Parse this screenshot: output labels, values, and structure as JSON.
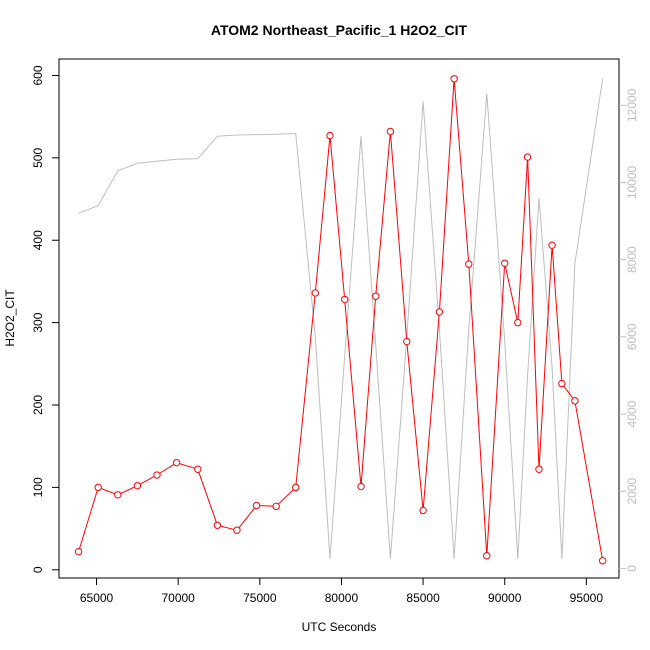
{
  "chart_data": {
    "type": "line",
    "title": "ATOM2 Northeast_Pacific_1 H2O2_CIT",
    "xlabel": "UTC Seconds",
    "ylabel": "H2O2_CIT",
    "xlim": [
      62700,
      97000
    ],
    "ylim": [
      -10,
      620
    ],
    "y2lim": [
      -250,
      13200
    ],
    "x_ticks": [
      65000,
      70000,
      75000,
      80000,
      85000,
      90000,
      95000
    ],
    "y_ticks": [
      0,
      100,
      200,
      300,
      400,
      500,
      600
    ],
    "y2_ticks": [
      0,
      2000,
      4000,
      6000,
      8000,
      10000,
      12000
    ],
    "grid": false,
    "series": [
      {
        "axis": "left",
        "color": "#ff0000",
        "marker": "open-circle",
        "x": [
          63900,
          65100,
          66300,
          67500,
          68700,
          69900,
          71200,
          72400,
          73600,
          74800,
          76000,
          77200,
          78400,
          79300,
          80200,
          81200,
          82100,
          83000,
          84000,
          85000,
          86000,
          86900,
          87800,
          88900,
          90000,
          90800,
          91400,
          92100,
          92900,
          93500,
          94300,
          96000
        ],
        "values": [
          22,
          100,
          91,
          102,
          115,
          130,
          122,
          54,
          48,
          78,
          77,
          100,
          336,
          527,
          328,
          101,
          332,
          532,
          277,
          72,
          313,
          596,
          371,
          17,
          372,
          300,
          501,
          122,
          394,
          226,
          205,
          11
        ]
      },
      {
        "axis": "right",
        "color": "#bebebe",
        "marker": "none",
        "x": [
          63900,
          65100,
          66300,
          67500,
          68700,
          69900,
          71200,
          72400,
          73600,
          74800,
          76000,
          77200,
          78400,
          79300,
          80200,
          81200,
          82100,
          83000,
          84000,
          85000,
          86000,
          86900,
          87800,
          88900,
          90000,
          90800,
          91400,
          92100,
          92900,
          93500,
          94300,
          96000
        ],
        "values": [
          9200,
          9400,
          10300,
          10500,
          10550,
          10600,
          10620,
          11200,
          11230,
          11240,
          11250,
          11270,
          6000,
          250,
          5500,
          11200,
          5800,
          250,
          6000,
          12100,
          6200,
          250,
          6200,
          12300,
          5900,
          250,
          5000,
          9600,
          5200,
          250,
          7900,
          12700
        ]
      }
    ]
  }
}
